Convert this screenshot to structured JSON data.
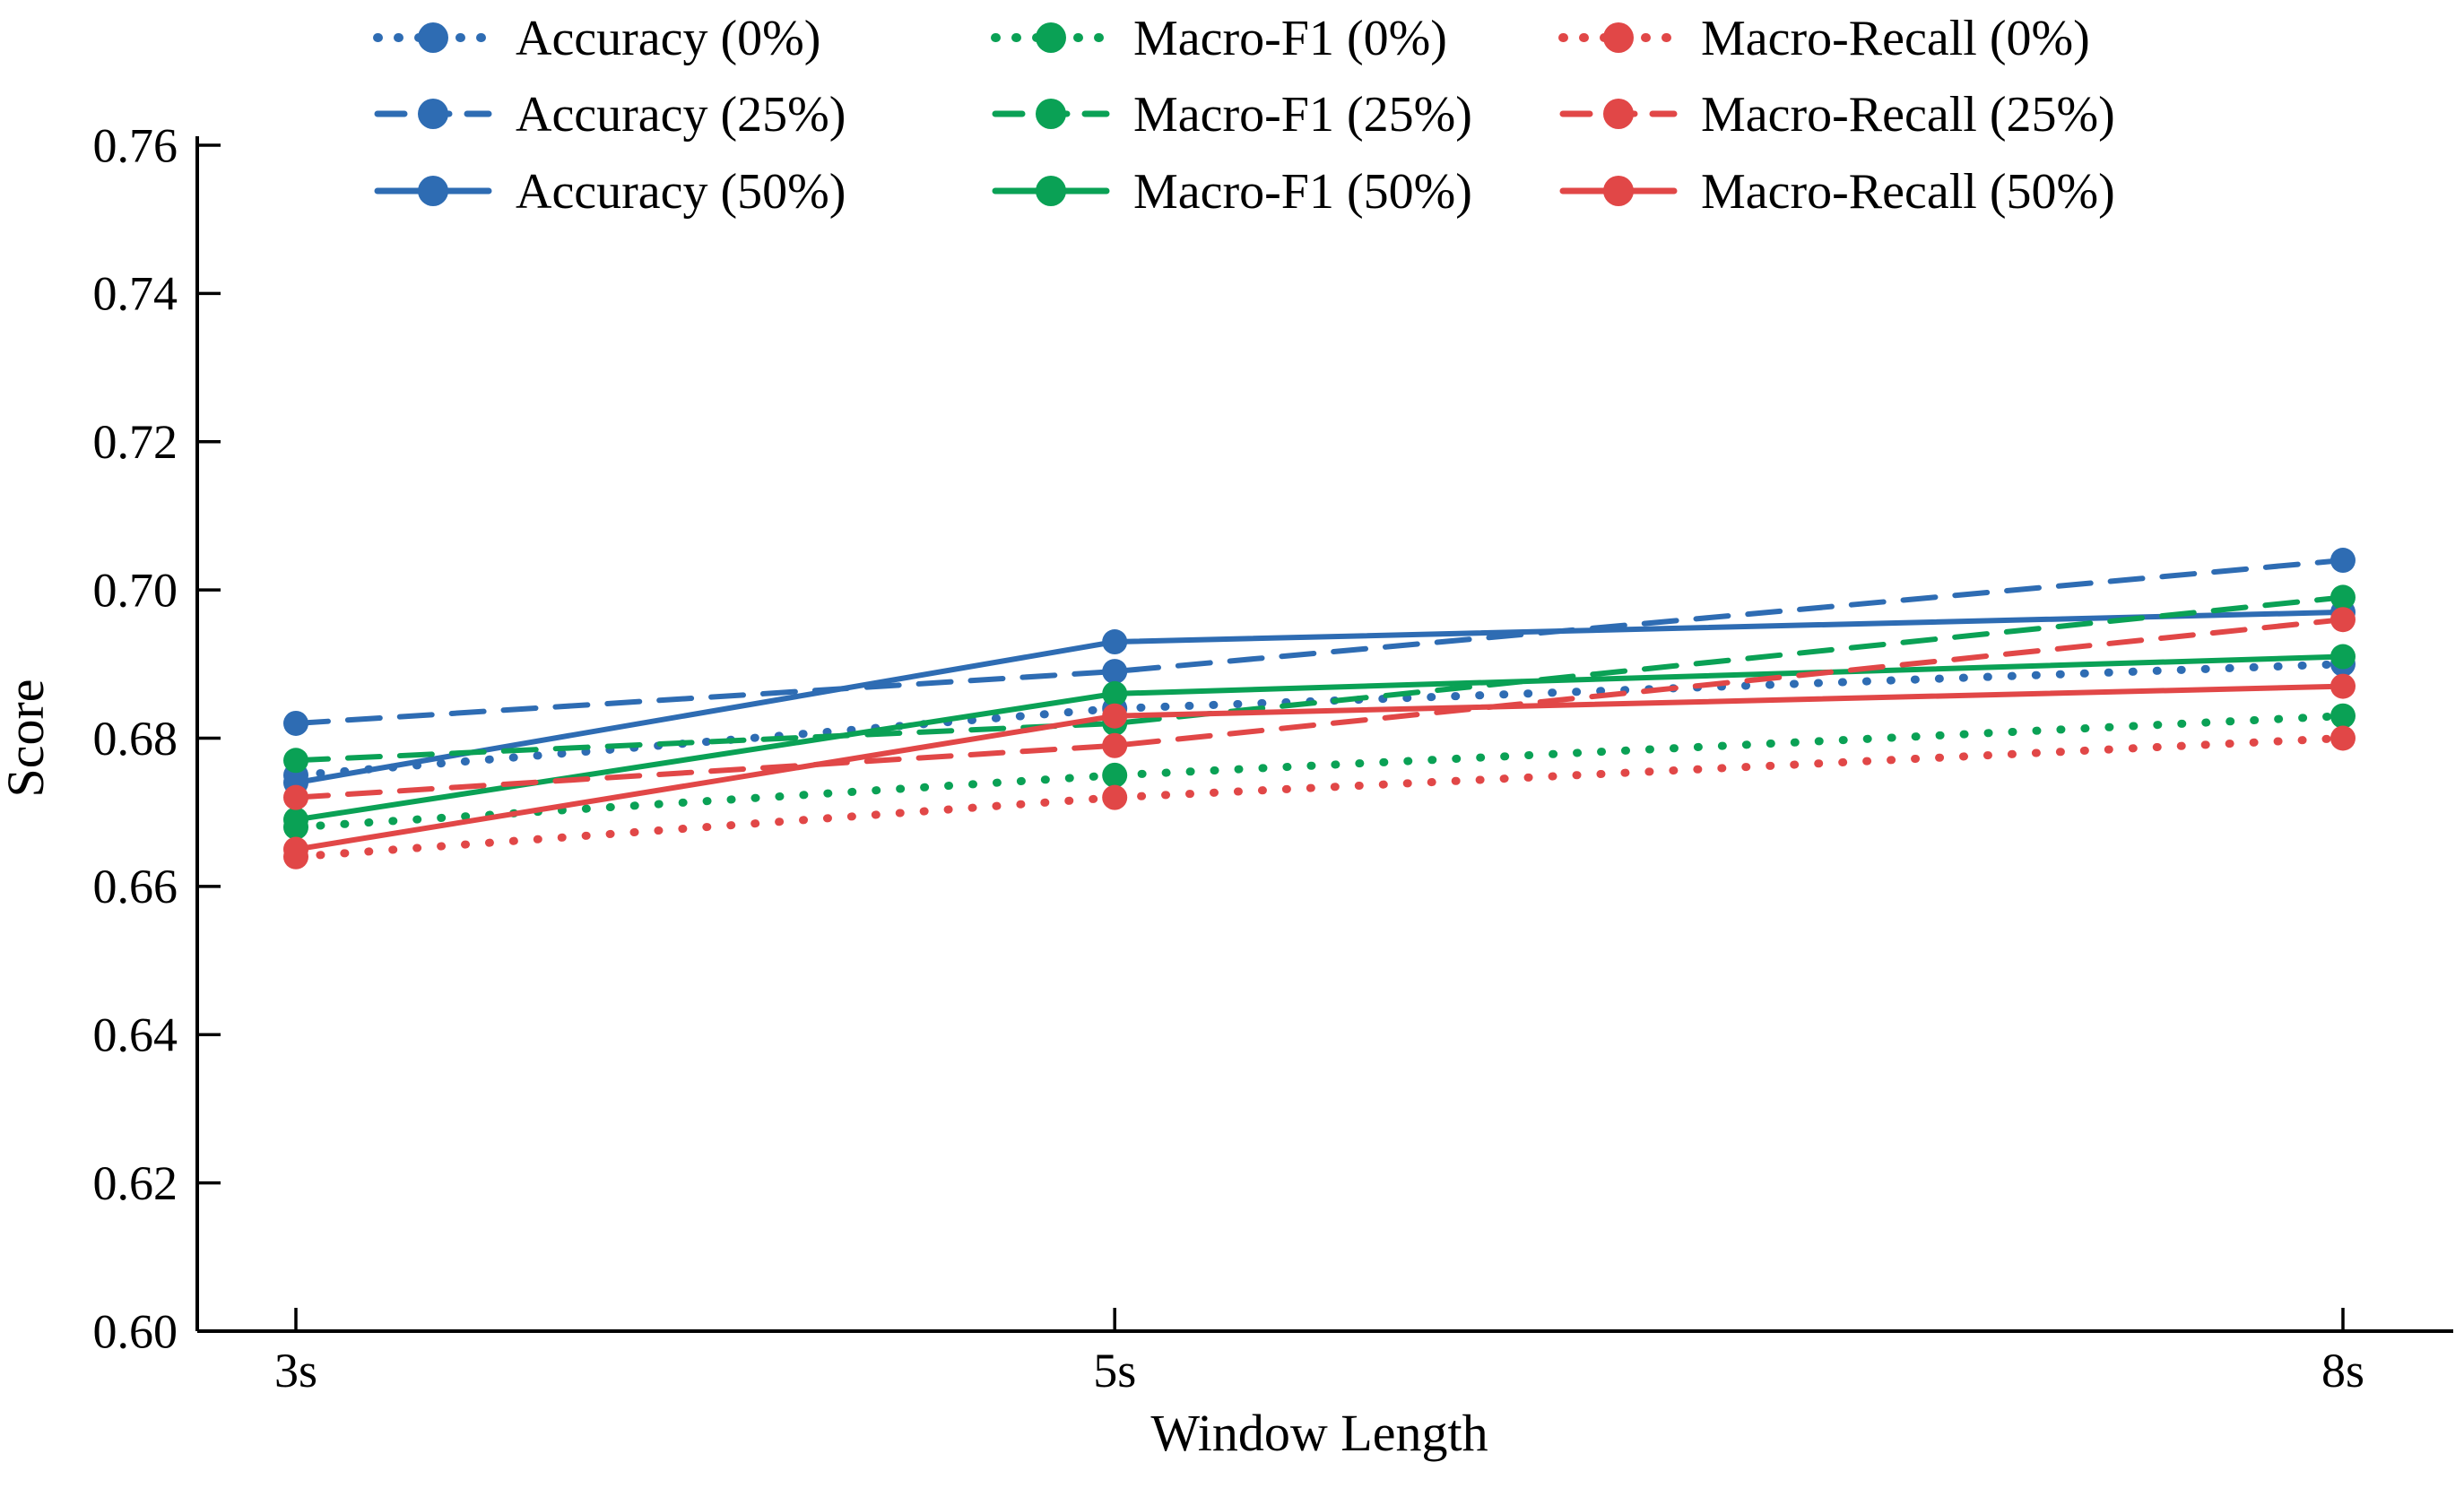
{
  "chart_data": {
    "type": "line",
    "title": "",
    "xlabel": "Window Length",
    "ylabel": "Score",
    "x_categories": [
      "3s",
      "5s",
      "8s"
    ],
    "x_values": [
      3,
      5,
      8
    ],
    "ylim": [
      0.6,
      0.76
    ],
    "ytick_step": 0.02,
    "ytick_labels": [
      "0.60",
      "0.62",
      "0.64",
      "0.66",
      "0.68",
      "0.70",
      "0.72",
      "0.74",
      "0.76"
    ],
    "grid": false,
    "legend_position": "top",
    "legend_layout": "3-columns-column-major",
    "colors": {
      "accuracy_blue": "#2e6cb3",
      "macro_f1_green": "#0aa155",
      "macro_recall_red": "#e14747",
      "axis_black": "#000000"
    },
    "series": [
      {
        "name": "Accuracy (0%)",
        "color": "#2e6cb3",
        "style": "dotted",
        "values": [
          0.675,
          0.684,
          0.69
        ]
      },
      {
        "name": "Accuracy (25%)",
        "color": "#2e6cb3",
        "style": "dashed",
        "values": [
          0.682,
          0.689,
          0.704
        ]
      },
      {
        "name": "Accuracy (50%)",
        "color": "#2e6cb3",
        "style": "solid",
        "values": [
          0.674,
          0.693,
          0.697
        ]
      },
      {
        "name": "Macro-F1 (0%)",
        "color": "#0aa155",
        "style": "dotted",
        "values": [
          0.668,
          0.675,
          0.683
        ]
      },
      {
        "name": "Macro-F1 (25%)",
        "color": "#0aa155",
        "style": "dashed",
        "values": [
          0.677,
          0.682,
          0.699
        ]
      },
      {
        "name": "Macro-F1 (50%)",
        "color": "#0aa155",
        "style": "solid",
        "values": [
          0.669,
          0.686,
          0.691
        ]
      },
      {
        "name": "Macro-Recall (0%)",
        "color": "#e14747",
        "style": "dotted",
        "values": [
          0.664,
          0.672,
          0.68
        ]
      },
      {
        "name": "Macro-Recall (25%)",
        "color": "#e14747",
        "style": "dashed",
        "values": [
          0.672,
          0.679,
          0.696
        ]
      },
      {
        "name": "Macro-Recall (50%)",
        "color": "#e14747",
        "style": "solid",
        "values": [
          0.665,
          0.683,
          0.687
        ]
      }
    ]
  }
}
